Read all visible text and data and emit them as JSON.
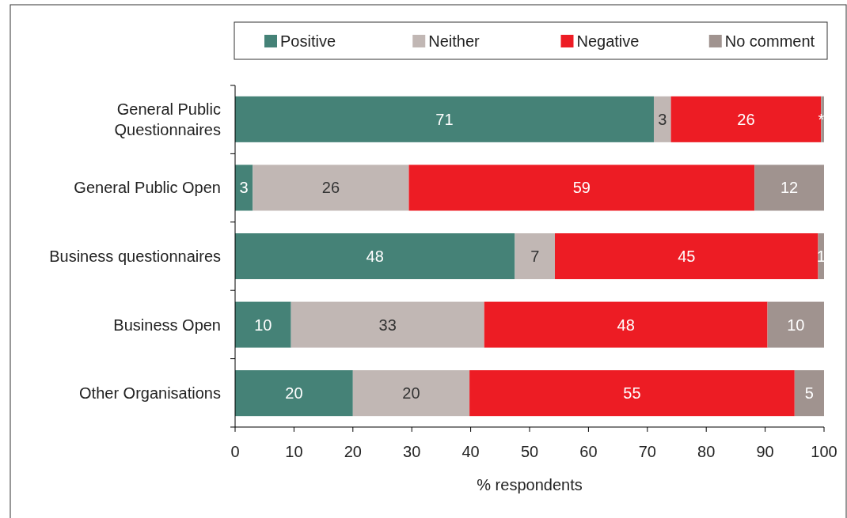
{
  "chart_data": {
    "type": "bar",
    "orientation": "horizontal",
    "stacked": true,
    "categories": [
      "General Public Questionnaires",
      "General Public Open",
      "Business questionnaires",
      "Business Open",
      "Other Organisations"
    ],
    "series": [
      {
        "name": "Positive",
        "color": "#458277",
        "values": [
          71.1,
          3,
          47.5,
          9.5,
          20
        ],
        "value_labels": [
          "71",
          "3",
          "48",
          "10",
          "20"
        ]
      },
      {
        "name": "Neither",
        "color": "#c1b7b4",
        "values": [
          2.9,
          26.5,
          6.8,
          32.8,
          19.8
        ],
        "value_labels": [
          "3",
          "26",
          "7",
          "33",
          "20"
        ]
      },
      {
        "name": "Negative",
        "color": "#ed1c24",
        "values": [
          25.5,
          58.7,
          44.7,
          48.1,
          55.2
        ],
        "value_labels": [
          "26",
          "59",
          "45",
          "48",
          "55"
        ]
      },
      {
        "name": "No comment",
        "color": "#a0938f",
        "values": [
          0.5,
          11.8,
          1,
          9.6,
          5
        ],
        "value_labels": [
          "*",
          "12",
          "1",
          "10",
          "5"
        ]
      }
    ],
    "xlim": [
      0,
      100
    ],
    "xticks": [
      0,
      10,
      20,
      30,
      40,
      50,
      60,
      70,
      80,
      90,
      100
    ],
    "xlabel": "% respondents",
    "legend": "top",
    "grid": false
  }
}
